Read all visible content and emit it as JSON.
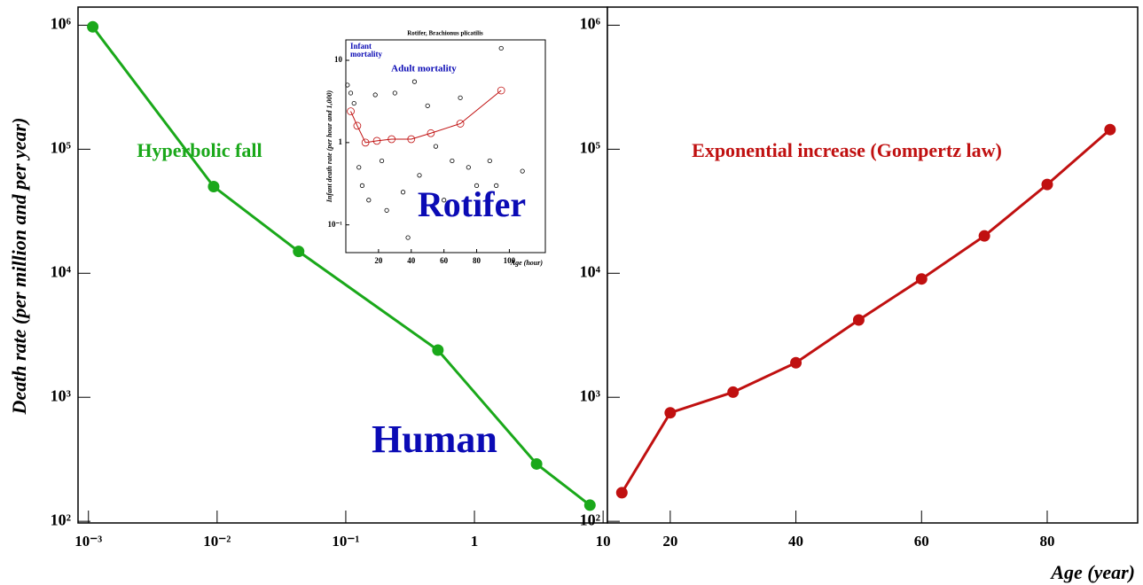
{
  "chart_data": [
    {
      "type": "line",
      "ytitle": "Death rate (per million and per year)",
      "x": [
        0.00108,
        0.0094,
        0.043,
        0.52,
        3.04,
        7.9
      ],
      "series": [
        {
          "color": "#1aa81a",
          "values": [
            970000,
            50000,
            15000,
            2400,
            290,
            135
          ]
        }
      ],
      "xscale": "log",
      "yscale": "log",
      "xlim": [
        0.00083,
        10.8
      ],
      "ylim": [
        97,
        1400000
      ],
      "xticks": [
        {
          "value": 0.001,
          "label": "10⁻³"
        },
        {
          "value": 0.01,
          "label": "10⁻²"
        },
        {
          "value": 0.1,
          "label": "10⁻¹"
        },
        1,
        10
      ],
      "yticks": [
        {
          "value": 100,
          "label": "10²"
        },
        {
          "value": 1000,
          "label": "10³"
        },
        {
          "value": 10000,
          "label": "10⁴"
        },
        {
          "value": 100000,
          "label": "10⁵"
        },
        {
          "value": 1000000,
          "label": "10⁶"
        }
      ],
      "annotations": [
        {
          "text": "Hyperbolic fall",
          "color": "#1aa81a"
        },
        {
          "text": "Human",
          "color": "#0b0bb5"
        }
      ]
    },
    {
      "type": "line",
      "xtitle": "Age (year)",
      "x": [
        12.3,
        20,
        30,
        40,
        50,
        60,
        70,
        80,
        90
      ],
      "series": [
        {
          "color": "#c01010",
          "values": [
            170,
            750,
            1100,
            1900,
            4200,
            9000,
            20000,
            52000,
            144000
          ]
        }
      ],
      "xscale": "linear",
      "yscale": "log",
      "xlim": [
        10,
        94.4
      ],
      "ylim": [
        97,
        1400000
      ],
      "xticks": [
        20,
        40,
        60,
        80
      ],
      "yticks": [
        {
          "value": 100,
          "label": "10²"
        },
        {
          "value": 1000,
          "label": "10³"
        },
        {
          "value": 10000,
          "label": "10⁴"
        },
        {
          "value": 100000,
          "label": "10⁵"
        },
        {
          "value": 1000000,
          "label": "10⁶"
        }
      ],
      "annotations": [
        {
          "text": "Exponential increase (Gompertz law)",
          "color": "#c01010"
        }
      ]
    },
    {
      "type": "scatter",
      "title": "Rotifer, Brachionus plicatilis",
      "ytitle": "Infant death rate (per hour and 1,000)",
      "xtitle": "Age (hour)",
      "xscale": "linear",
      "yscale": "log",
      "xlim": [
        0,
        122
      ],
      "ylim": [
        0.046,
        17.7
      ],
      "xticks": [
        20,
        40,
        60,
        80,
        100
      ],
      "yticks": [
        {
          "value": 0.1,
          "label": "10⁻¹"
        },
        1,
        10
      ],
      "series": [
        {
          "color": "#000000",
          "mode": "markers",
          "x": [
            1,
            3,
            5,
            8,
            10,
            14,
            18,
            22,
            25,
            30,
            35,
            38,
            42,
            45,
            50,
            55,
            60,
            65,
            70,
            75,
            80,
            88,
            92,
            95,
            108
          ],
          "values": [
            5,
            4,
            3,
            0.5,
            0.3,
            0.2,
            3.8,
            0.6,
            0.15,
            4,
            0.25,
            0.07,
            5.5,
            0.4,
            2.8,
            0.9,
            0.2,
            0.6,
            3.5,
            0.5,
            0.3,
            0.6,
            0.3,
            14,
            0.45
          ]
        },
        {
          "color": "#c01010",
          "mode": "line",
          "x": [
            3,
            7,
            12,
            19,
            28,
            40,
            52,
            70,
            95
          ],
          "values": [
            2.4,
            1.6,
            1.0,
            1.05,
            1.1,
            1.1,
            1.3,
            1.7,
            4.3
          ]
        }
      ],
      "annotations": [
        {
          "text": "Infant",
          "color": "#0b0bb5"
        },
        {
          "text": "mortality",
          "color": "#0b0bb5"
        },
        {
          "text": "Adult mortality",
          "color": "#0b0bb5"
        },
        {
          "text": "Rotifer",
          "color": "#0b0bb5"
        }
      ]
    }
  ]
}
